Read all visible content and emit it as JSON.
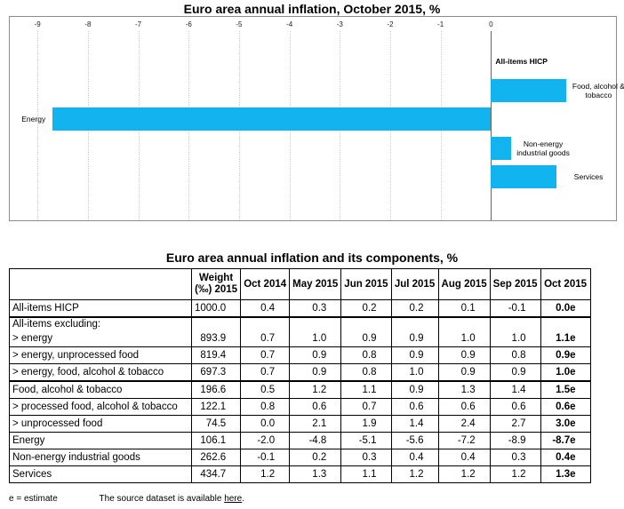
{
  "chart_data": {
    "type": "barh",
    "title": "Euro area annual inflation, October 2015, %",
    "categories": [
      "All-items HICP",
      "Food, alcohol & tobacco",
      "Energy",
      "Non-energy industrial goods",
      "Services"
    ],
    "values": [
      0.0,
      1.5,
      -8.7,
      0.4,
      1.3
    ],
    "color": "#12b4f0",
    "xlim": [
      -9.55,
      2.48
    ],
    "xticks": [
      -9,
      -8,
      -7,
      -6,
      -5,
      -4,
      -3,
      -2,
      -1,
      0
    ],
    "grid": true
  },
  "table": {
    "title": "Euro area annual inflation and its components, %",
    "header": [
      "Weight (‰) 2015",
      "Oct 2014",
      "May 2015",
      "Jun 2015",
      "Jul 2015",
      "Aug 2015",
      "Sep 2015",
      "Oct 2015"
    ],
    "rows": [
      [
        "All-items HICP",
        "1000.0",
        "0.4",
        "0.3",
        "0.2",
        "0.2",
        "0.1",
        "-0.1",
        "0.0e"
      ],
      [
        "All-items excluding:"
      ],
      [
        "> energy",
        "893.9",
        "0.7",
        "1.0",
        "0.9",
        "0.9",
        "1.0",
        "1.0",
        "1.1e"
      ],
      [
        "> energy, unprocessed food",
        "819.4",
        "0.7",
        "0.9",
        "0.8",
        "0.9",
        "0.9",
        "0.8",
        "0.9e"
      ],
      [
        "> energy, food, alcohol & tobacco",
        "697.3",
        "0.7",
        "0.9",
        "0.8",
        "1.0",
        "0.9",
        "0.9",
        "1.0e"
      ],
      [
        "Food, alcohol & tobacco",
        "196.6",
        "0.5",
        "1.2",
        "1.1",
        "0.9",
        "1.3",
        "1.4",
        "1.5e"
      ],
      [
        "> processed food, alcohol & tobacco",
        "122.1",
        "0.8",
        "0.6",
        "0.7",
        "0.6",
        "0.6",
        "0.6",
        "0.6e"
      ],
      [
        "> unprocessed food",
        "74.5",
        "0.0",
        "2.1",
        "1.9",
        "1.4",
        "2.4",
        "2.7",
        "3.0e"
      ],
      [
        "Energy",
        "106.1",
        "-2.0",
        "-4.8",
        "-5.1",
        "-5.6",
        "-7.2",
        "-8.9",
        "-8.7e"
      ],
      [
        "Non-energy industrial goods",
        "262.6",
        "-0.1",
        "0.2",
        "0.3",
        "0.4",
        "0.4",
        "0.3",
        "0.4e"
      ],
      [
        "Services",
        "434.7",
        "1.2",
        "1.3",
        "1.1",
        "1.2",
        "1.2",
        "1.2",
        "1.3e"
      ]
    ]
  },
  "footer": {
    "note": "e = estimate",
    "source": "The source dataset is available ",
    "link": "here",
    "end": "."
  }
}
